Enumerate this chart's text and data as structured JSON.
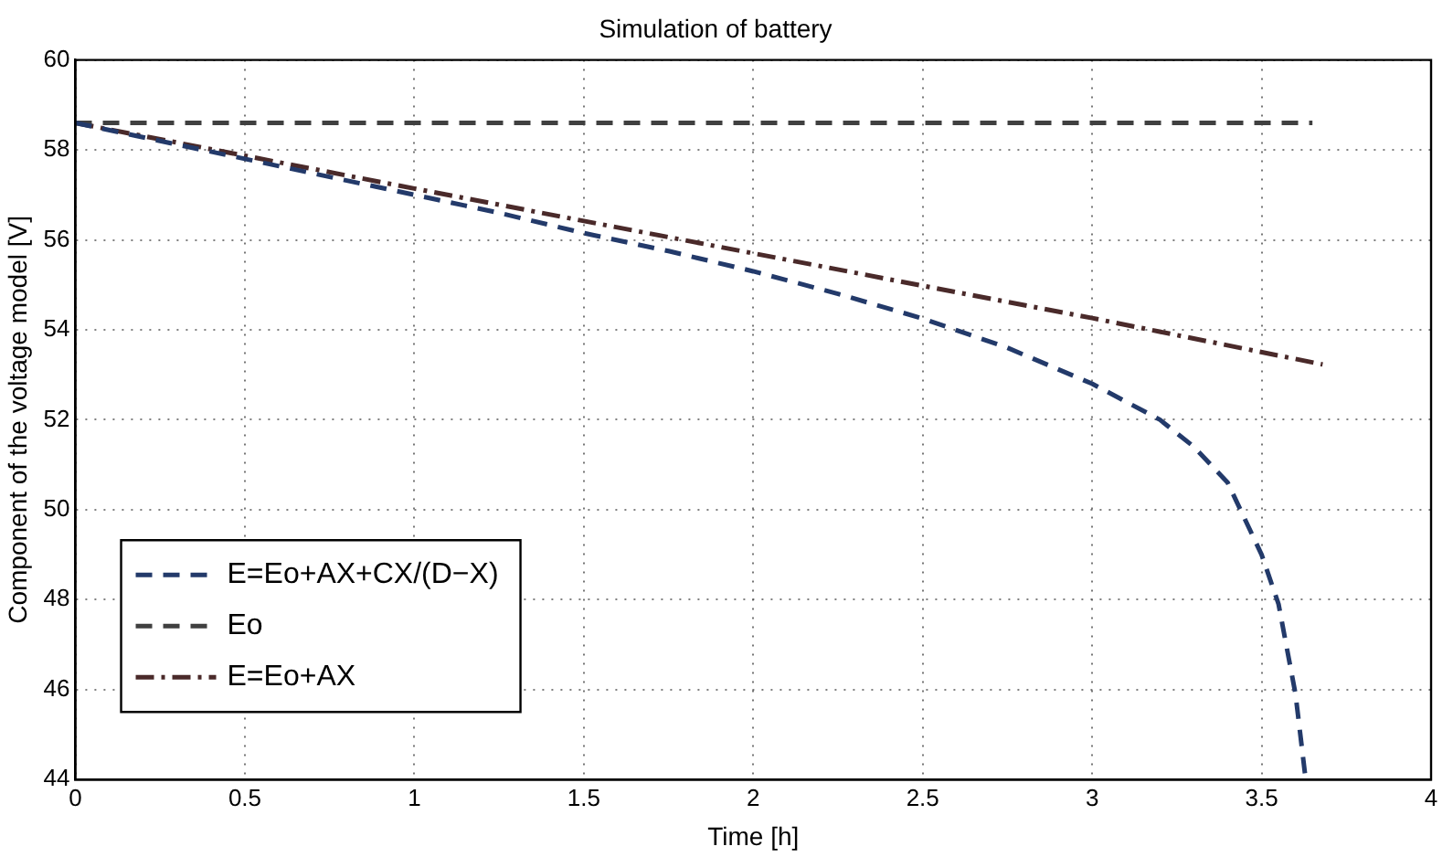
{
  "chart_data": {
    "type": "line",
    "title": "Simulation of battery",
    "xlabel": "Time [h]",
    "ylabel": "Component of the voltage model [V]",
    "xlim": [
      0,
      4
    ],
    "xticks": [
      0,
      0.5,
      1,
      1.5,
      2,
      2.5,
      3,
      3.5,
      4
    ],
    "ylim": [
      44,
      60
    ],
    "yticks": [
      44,
      46,
      48,
      50,
      52,
      54,
      56,
      58,
      60
    ],
    "grid": true,
    "legend": "bottom left",
    "marker": "none",
    "series": [
      {
        "name": "E=Eo+AX+CX/(D−X)",
        "color": "#233a6a",
        "line_style": "dashed",
        "x": [
          0,
          0.25,
          0.5,
          0.75,
          1,
          1.25,
          1.5,
          1.75,
          2,
          2.25,
          2.5,
          2.75,
          3,
          3.1,
          3.2,
          3.3,
          3.4,
          3.5,
          3.55,
          3.6,
          3.63
        ],
        "values": [
          58.6,
          58.2,
          57.8,
          57.4,
          57.0,
          56.6,
          56.15,
          55.75,
          55.3,
          54.8,
          54.25,
          53.6,
          52.8,
          52.4,
          52.0,
          51.4,
          50.6,
          49.0,
          47.9,
          45.9,
          44.0
        ]
      },
      {
        "name": "Eo",
        "color": "#404040",
        "line_style": "dashed",
        "x": [
          0,
          3.65
        ],
        "values": [
          58.6,
          58.6
        ]
      },
      {
        "name": "E=Eo+AX",
        "color": "#4a2a2a",
        "line_style": "dashdot",
        "x": [
          0,
          1,
          2,
          3,
          3.68
        ],
        "values": [
          58.6,
          57.14,
          55.7,
          54.26,
          53.23
        ]
      }
    ]
  }
}
